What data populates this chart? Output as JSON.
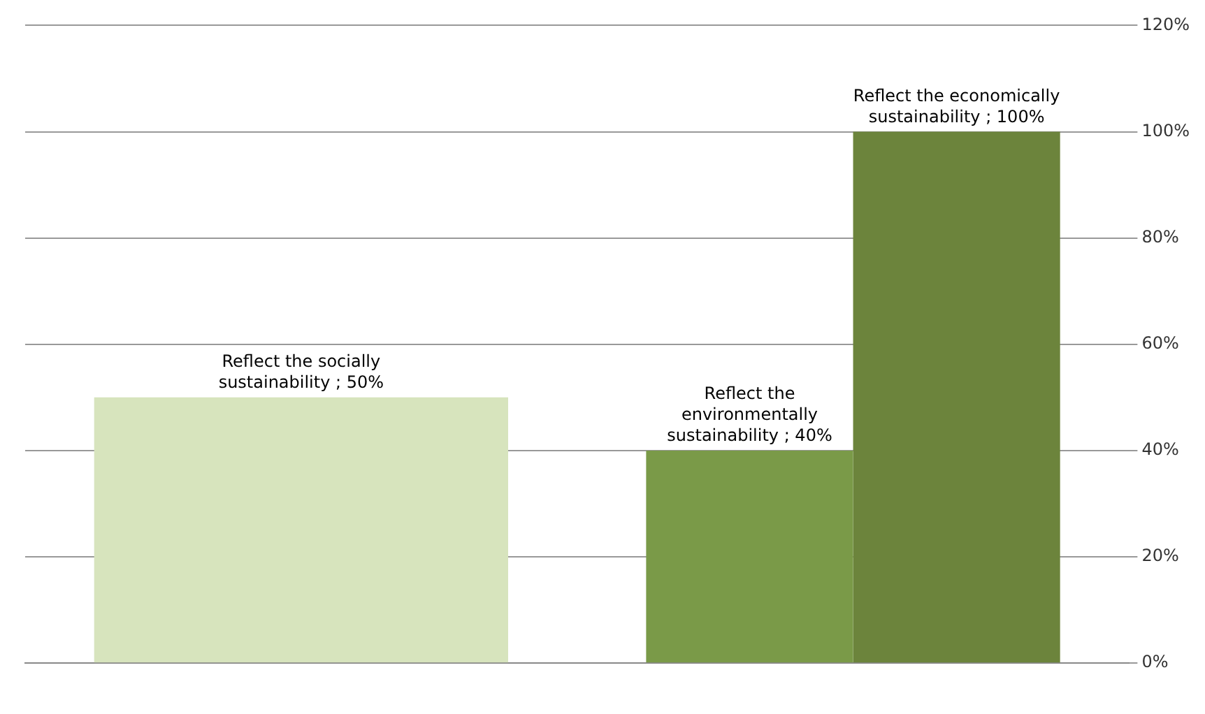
{
  "chart_data": {
    "type": "bar",
    "categories": [
      null,
      null
    ],
    "series": [
      {
        "color": "#d7e4bd",
        "values": [
          50,
          null
        ],
        "value_labels": [
          "Reflect the socially sustainability ; 50%",
          null
        ]
      },
      {
        "color": "#7a9a48",
        "values": [
          null,
          40
        ],
        "value_labels": [
          null,
          "Reflect the environmentally sustainability ; 40%"
        ]
      },
      {
        "color": "#6c843c",
        "values": [
          null,
          100
        ],
        "value_labels": [
          null,
          "Reflect the economically sustainability ; 100%"
        ]
      }
    ],
    "ylim": [
      0,
      120
    ],
    "yticks": [
      {
        "value": 0,
        "label": "0%"
      },
      {
        "value": 20,
        "label": "20%"
      },
      {
        "value": 40,
        "label": "40%"
      },
      {
        "value": 60,
        "label": "60%"
      },
      {
        "value": 80,
        "label": "80%"
      },
      {
        "value": 100,
        "label": "100%"
      },
      {
        "value": 120,
        "label": "120%"
      }
    ],
    "grid": "y",
    "legend": false
  }
}
